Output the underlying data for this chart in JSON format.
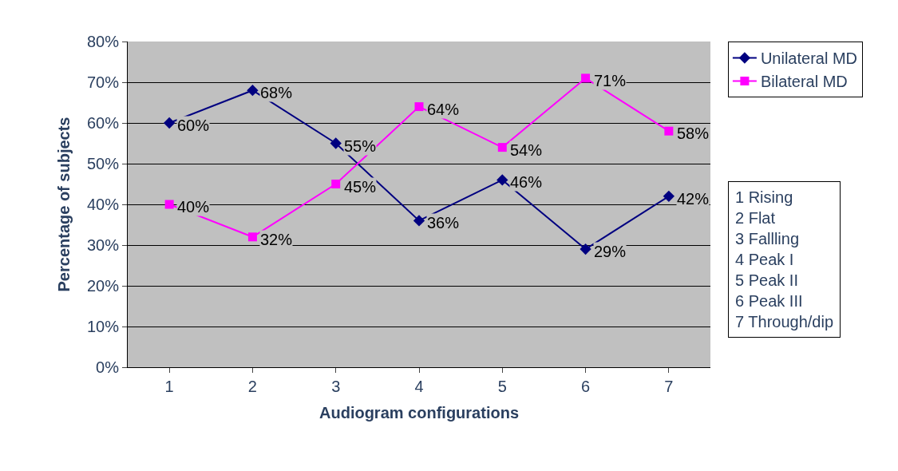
{
  "chart_data": {
    "type": "line",
    "xlabel": "Audiogram configurations",
    "ylabel": "Percentage of subjects",
    "categories": [
      "1",
      "2",
      "3",
      "4",
      "5",
      "6",
      "7"
    ],
    "series": [
      {
        "name": "Unilateral MD",
        "color": "#000080",
        "marker": "diamond",
        "values": [
          60,
          68,
          55,
          36,
          46,
          29,
          42
        ],
        "value_labels": [
          "60%",
          "68%",
          "55%",
          "36%",
          "46%",
          "29%",
          "42%"
        ]
      },
      {
        "name": "Bilateral MD",
        "color": "#ff00ff",
        "marker": "square",
        "values": [
          40,
          32,
          45,
          64,
          54,
          71,
          58
        ],
        "value_labels": [
          "40%",
          "32%",
          "45%",
          "64%",
          "54%",
          "71%",
          "58%"
        ]
      }
    ],
    "ylim": [
      0,
      80
    ],
    "yticks": [
      {
        "value": 0,
        "label": "0%"
      },
      {
        "value": 10,
        "label": "10%"
      },
      {
        "value": 20,
        "label": "20%"
      },
      {
        "value": 30,
        "label": "30%"
      },
      {
        "value": 40,
        "label": "40%"
      },
      {
        "value": 50,
        "label": "50%"
      },
      {
        "value": 60,
        "label": "60%"
      },
      {
        "value": 70,
        "label": "70%"
      },
      {
        "value": 80,
        "label": "80%"
      }
    ],
    "grid": "y",
    "legend": "right",
    "line_style": "solid",
    "annotations": [
      "1 Rising\n2 Flat\n3 Fallling\n4 Peak I\n5 Peak II\n6 Peak III\n7 Through/dip"
    ]
  }
}
